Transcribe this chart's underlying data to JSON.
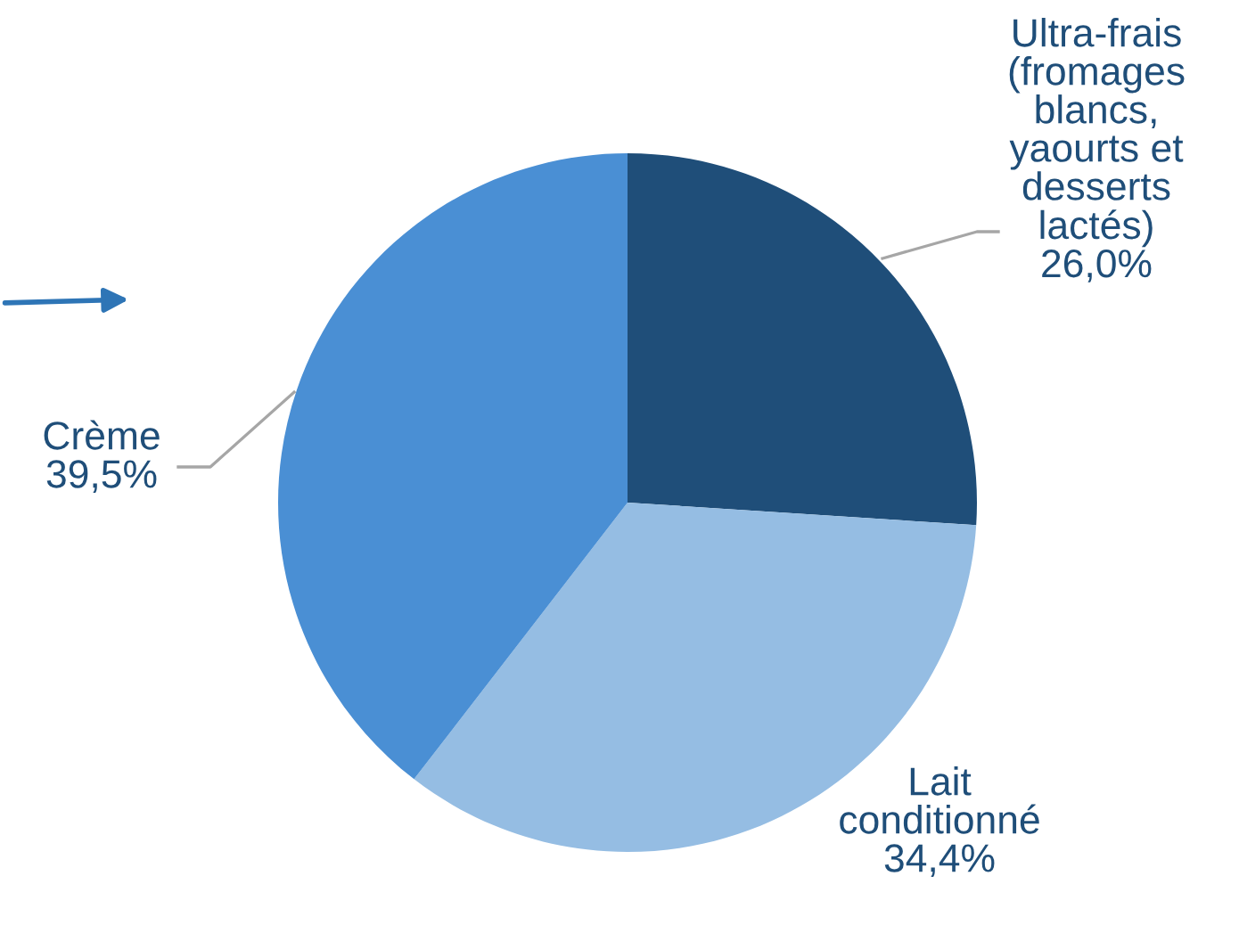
{
  "chart_data": {
    "type": "pie",
    "categories": [
      "Ultra-frais\n(fromages\nblancs,\nyaourts et\ndesserts\nlactés)",
      "Lait\nconditionné",
      "Crème"
    ],
    "values": [
      26.0,
      34.4,
      39.5
    ],
    "value_labels": [
      "26,0%",
      "34,4%",
      "39,5%"
    ],
    "colors": [
      "#1f4e79",
      "#95bde3",
      "#4a8fd4"
    ]
  }
}
